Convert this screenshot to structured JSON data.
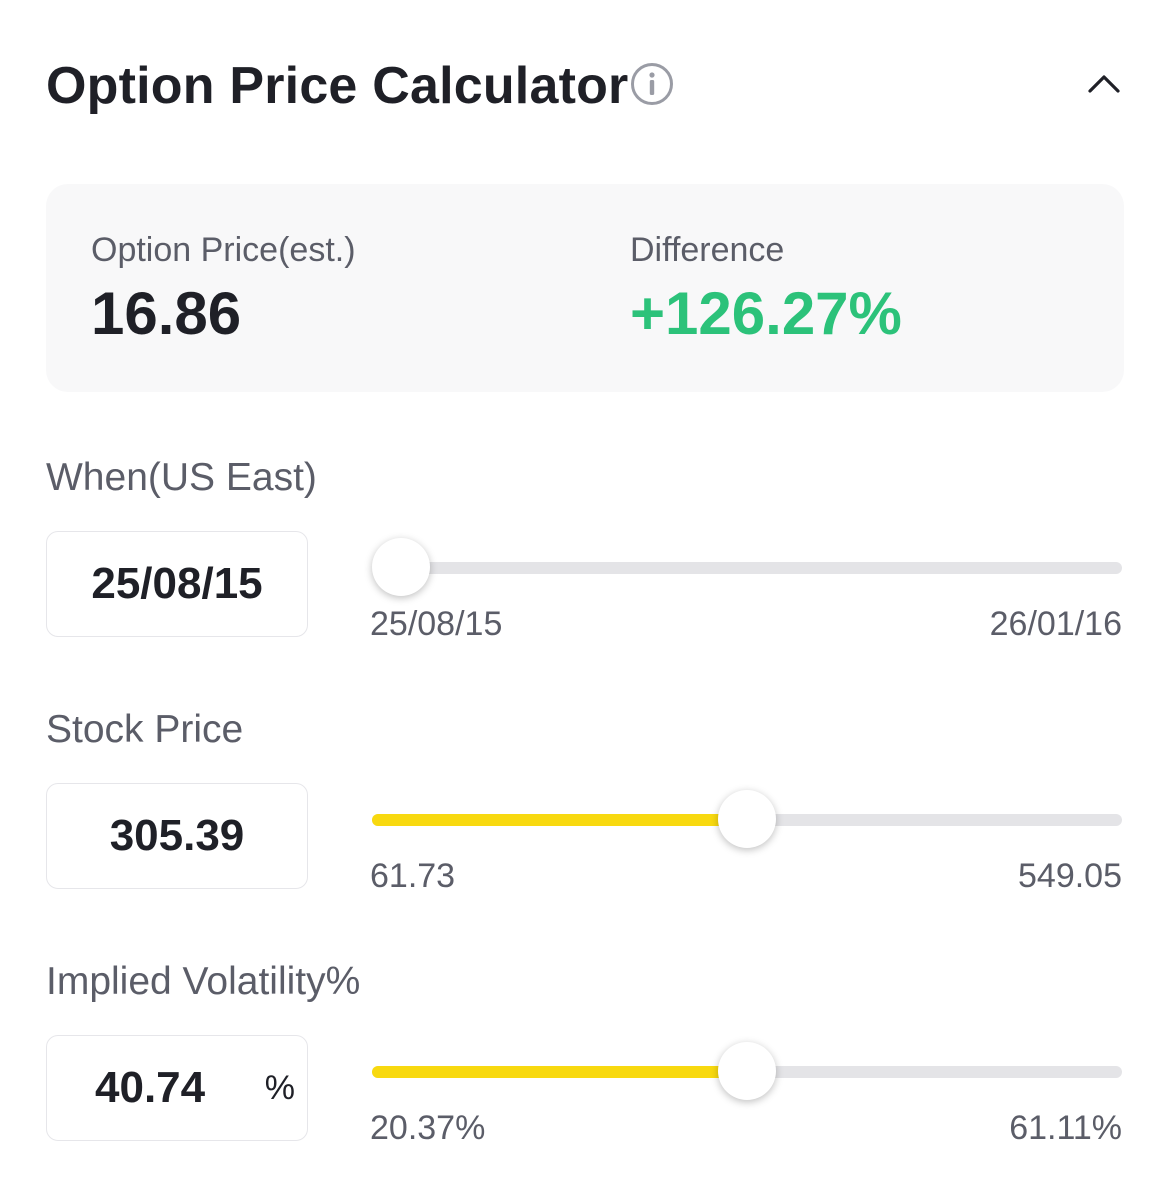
{
  "header": {
    "title": "Option Price Calculator",
    "info_icon": "info-circle-icon",
    "collapse_icon": "chevron-up-icon"
  },
  "summary": {
    "option_price_label": "Option Price(est.)",
    "option_price_value": "16.86",
    "difference_label": "Difference",
    "difference_value": "+126.27%",
    "difference_color": "#2cc27a"
  },
  "when": {
    "label": "When(US East)",
    "value": "25/08/15",
    "min": "25/08/15",
    "max": "26/01/16",
    "fraction": 0.0
  },
  "stock_price": {
    "label": "Stock Price",
    "value": "305.39",
    "min": "61.73",
    "max": "549.05",
    "fraction": 0.5
  },
  "implied_volatility": {
    "label": "Implied Volatility%",
    "value": "40.74",
    "unit": "%",
    "min": "20.37%",
    "max": "61.11%",
    "fraction": 0.5
  },
  "colors": {
    "accent_fill": "#f8d90f",
    "track": "#e4e4e7",
    "positive": "#2cc27a"
  }
}
